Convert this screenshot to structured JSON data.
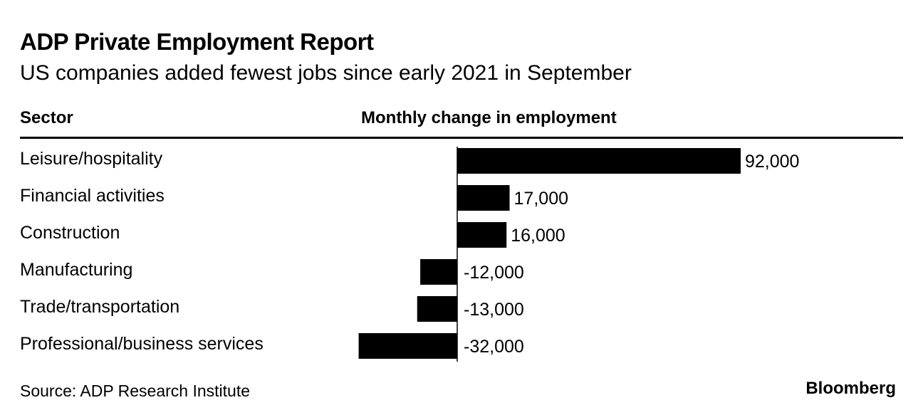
{
  "header": {
    "title": "ADP Private Employment Report",
    "subtitle": "US companies added fewest jobs since early 2021 in September"
  },
  "columns": {
    "sector": "Sector",
    "change": "Monthly change in employment"
  },
  "footer": {
    "source": "Source: ADP Research Institute",
    "brand": "Bloomberg"
  },
  "colors": {
    "bar": "#000000",
    "text": "#000000",
    "background": "#ffffff"
  },
  "chart_data": {
    "type": "bar",
    "orientation": "horizontal",
    "title": "ADP Private Employment Report",
    "subtitle": "US companies added fewest jobs since early 2021 in September",
    "xlabel": "Monthly change in employment",
    "ylabel": "Sector",
    "categories": [
      "Leisure/hospitality",
      "Financial activities",
      "Construction",
      "Manufacturing",
      "Trade/transportation",
      "Professional/business services"
    ],
    "values": [
      92000,
      17000,
      16000,
      -12000,
      -13000,
      -32000
    ],
    "value_labels": [
      "92,000",
      "17,000",
      "16,000",
      "-12,000",
      "-13,000",
      "-32,000"
    ],
    "xlim": [
      -32000,
      92000
    ],
    "grid": false,
    "legend": "none"
  }
}
